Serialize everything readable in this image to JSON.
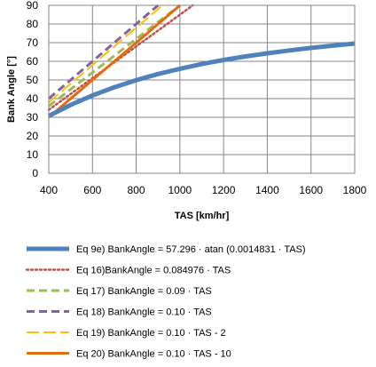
{
  "chart_data": {
    "type": "line",
    "xlabel": "TAS [km/hr]",
    "ylabel": "Bank Angle  [°]",
    "xlim": [
      400,
      1800
    ],
    "ylim": [
      0,
      90
    ],
    "xticks": [
      400,
      600,
      800,
      1000,
      1200,
      1400,
      1600,
      1800
    ],
    "yticks": [
      0,
      10,
      20,
      30,
      40,
      50,
      60,
      70,
      80,
      90
    ],
    "grid": true,
    "legend": "bottom",
    "series": [
      {
        "name": "Eq 9e) BankAngle = 57.296 · atan (0.0014831 · TAS)",
        "color": "#4f81bd",
        "dash": "solid",
        "width": 5,
        "x": [
          400,
          500,
          600,
          700,
          800,
          900,
          1000,
          1100,
          1200,
          1300,
          1400,
          1500,
          1600,
          1700,
          1800
        ],
        "y": [
          30.7,
          36.6,
          41.7,
          46.1,
          49.9,
          53.2,
          56.0,
          58.5,
          60.7,
          62.6,
          64.3,
          65.8,
          67.2,
          68.4,
          69.5
        ]
      },
      {
        "name": "Eq 16)BankAngle = 0.084976 · TAS",
        "color": "#c0504d",
        "dash": "dotted",
        "width": 2.5,
        "x": [
          400,
          1059
        ],
        "y": [
          34.0,
          90.0
        ]
      },
      {
        "name": "Eq 17) BankAngle = 0.09 · TAS",
        "color": "#9bbb59",
        "dash": "dashed",
        "width": 3,
        "x": [
          400,
          1000
        ],
        "y": [
          36.0,
          90.0
        ]
      },
      {
        "name": "Eq 18) BankAngle = 0.10 · TAS",
        "color": "#8064a2",
        "dash": "dashed",
        "width": 3,
        "x": [
          400,
          900
        ],
        "y": [
          40.0,
          90.0
        ]
      },
      {
        "name": "Eq 19) BankAngle = 0.10 · TAS - 2",
        "color": "#ffc000",
        "dash": "longdash",
        "width": 2,
        "x": [
          400,
          920
        ],
        "y": [
          38.0,
          90.0
        ]
      },
      {
        "name": "Eq 20) BankAngle = 0.10 · TAS - 10",
        "color": "#e46c0a",
        "dash": "solid",
        "width": 3,
        "x": [
          400,
          1000
        ],
        "y": [
          30.0,
          90.0
        ]
      }
    ]
  }
}
